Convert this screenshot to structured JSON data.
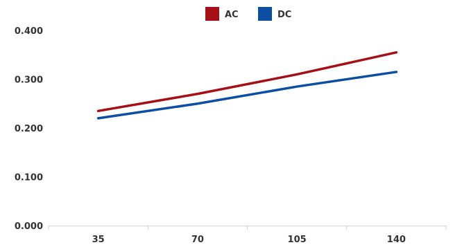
{
  "chart_data": {
    "type": "line",
    "title": "",
    "xlabel": "",
    "ylabel": "",
    "categories": [
      "35",
      "70",
      "105",
      "140"
    ],
    "x": [
      35,
      70,
      105,
      140
    ],
    "series": [
      {
        "name": "AC",
        "color": "#a50f15",
        "values": [
          0.235,
          0.27,
          0.31,
          0.355
        ]
      },
      {
        "name": "DC",
        "color": "#0b4ea2",
        "values": [
          0.22,
          0.25,
          0.285,
          0.315
        ]
      }
    ],
    "ylim": [
      0,
      0.4
    ],
    "yticks": [
      "0.000",
      "0.100",
      "0.200",
      "0.300",
      "0.400"
    ],
    "legend": "top-center",
    "grid": false
  }
}
